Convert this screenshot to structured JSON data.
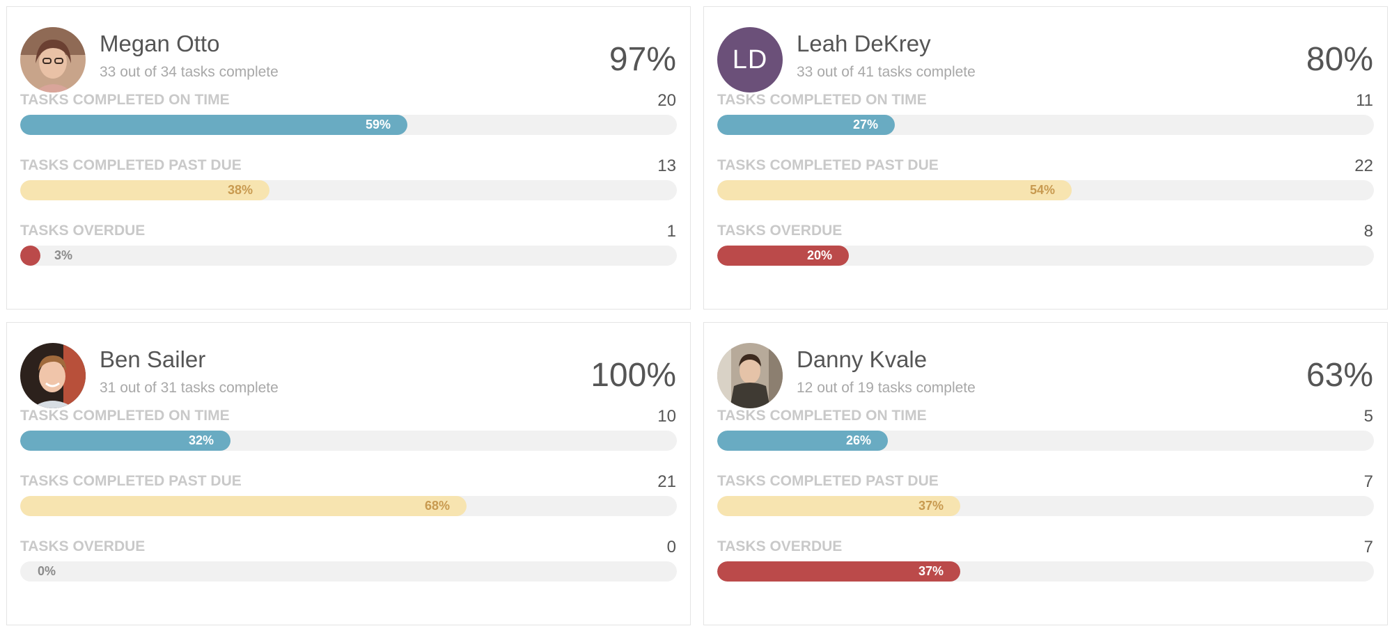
{
  "people": [
    {
      "name": "Megan Otto",
      "subtitle": "33 out of 34 tasks complete",
      "percent": "97%",
      "avatar": {
        "type": "photo",
        "icon": "user-photo-icon"
      },
      "rows": [
        {
          "label": "TASKS COMPLETED ON TIME",
          "count": "20",
          "bar_label": "59%",
          "value": 59,
          "color": "#69abc2"
        },
        {
          "label": "TASKS COMPLETED PAST DUE",
          "count": "13",
          "bar_label": "38%",
          "value": 38,
          "color": "#f7e4b0"
        },
        {
          "label": "TASKS OVERDUE",
          "count": "1",
          "bar_label": "3%",
          "value": 3,
          "color": "#bb4a4a"
        }
      ]
    },
    {
      "name": "Leah DeKrey",
      "subtitle": "33 out of 41 tasks complete",
      "percent": "80%",
      "avatar": {
        "type": "initials",
        "initials": "LD",
        "color": "#6b5079"
      },
      "rows": [
        {
          "label": "TASKS COMPLETED ON TIME",
          "count": "11",
          "bar_label": "27%",
          "value": 27,
          "color": "#69abc2"
        },
        {
          "label": "TASKS COMPLETED PAST DUE",
          "count": "22",
          "bar_label": "54%",
          "value": 54,
          "color": "#f7e4b0"
        },
        {
          "label": "TASKS OVERDUE",
          "count": "8",
          "bar_label": "20%",
          "value": 20,
          "color": "#bb4a4a"
        }
      ]
    },
    {
      "name": "Ben Sailer",
      "subtitle": "31 out of 31 tasks complete",
      "percent": "100%",
      "avatar": {
        "type": "photo",
        "icon": "user-photo-icon"
      },
      "rows": [
        {
          "label": "TASKS COMPLETED ON TIME",
          "count": "10",
          "bar_label": "32%",
          "value": 32,
          "color": "#69abc2"
        },
        {
          "label": "TASKS COMPLETED PAST DUE",
          "count": "21",
          "bar_label": "68%",
          "value": 68,
          "color": "#f7e4b0"
        },
        {
          "label": "TASKS OVERDUE",
          "count": "0",
          "bar_label": "0%",
          "value": 0,
          "color": "#bb4a4a"
        }
      ]
    },
    {
      "name": "Danny Kvale",
      "subtitle": "12 out of 19 tasks complete",
      "percent": "63%",
      "avatar": {
        "type": "photo",
        "icon": "user-photo-icon"
      },
      "rows": [
        {
          "label": "TASKS COMPLETED ON TIME",
          "count": "5",
          "bar_label": "26%",
          "value": 26,
          "color": "#69abc2"
        },
        {
          "label": "TASKS COMPLETED PAST DUE",
          "count": "7",
          "bar_label": "37%",
          "value": 37,
          "color": "#f7e4b0"
        },
        {
          "label": "TASKS OVERDUE",
          "count": "7",
          "bar_label": "37%",
          "value": 37,
          "color": "#bb4a4a"
        }
      ]
    }
  ]
}
